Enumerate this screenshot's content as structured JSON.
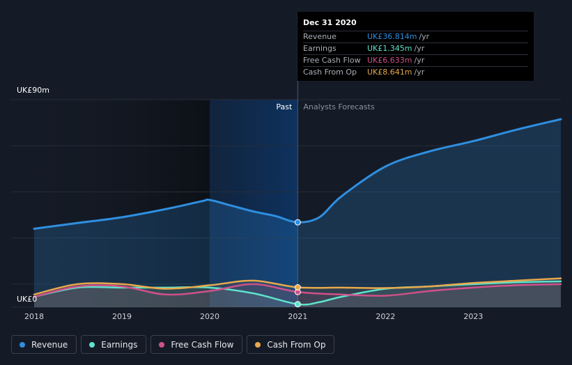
{
  "chart_data": {
    "type": "area",
    "x_ticks": [
      "2018",
      "2019",
      "2020",
      "2021",
      "2022",
      "2023"
    ],
    "y_top_label": "UK£90m",
    "y_bottom_label": "UK£0",
    "ylim": [
      0,
      90
    ],
    "divider_label_past": "Past",
    "divider_label_forecast": "Analysts Forecasts",
    "divider_date": "2021-01-01",
    "series": [
      {
        "name": "Revenue",
        "color": "#2f8fe0",
        "x": [
          "2018-01-01",
          "2018-07-01",
          "2019-01-01",
          "2019-07-01",
          "2019-12-01",
          "2020-01-01",
          "2020-04-01",
          "2020-07-01",
          "2020-10-01",
          "2021-01-01",
          "2021-04-01",
          "2021-07-01",
          "2022-01-01",
          "2022-07-01",
          "2023-01-01",
          "2023-07-01",
          "2023-12-31"
        ],
        "values": [
          34.0,
          36.5,
          39.0,
          42.5,
          46.0,
          46.5,
          44.0,
          41.5,
          39.5,
          36.8,
          39.0,
          48.0,
          61.0,
          67.5,
          72.0,
          77.0,
          81.5
        ]
      },
      {
        "name": "Earnings",
        "color": "#5fe3cc",
        "x": [
          "2018-01-01",
          "2018-07-01",
          "2019-01-01",
          "2019-07-01",
          "2020-01-01",
          "2020-07-01",
          "2021-01-01",
          "2021-04-01",
          "2021-07-01",
          "2022-01-01",
          "2022-07-01",
          "2023-01-01",
          "2023-07-01",
          "2023-12-31"
        ],
        "values": [
          4.5,
          8.5,
          8.5,
          8.5,
          8.5,
          6.0,
          1.3,
          2.2,
          4.5,
          8.0,
          9.0,
          10.0,
          10.8,
          11.2
        ]
      },
      {
        "name": "Free Cash Flow",
        "color": "#d0508a",
        "x": [
          "2018-01-01",
          "2018-07-01",
          "2019-01-01",
          "2019-07-01",
          "2020-01-01",
          "2020-07-01",
          "2021-01-01",
          "2021-07-01",
          "2022-01-01",
          "2022-07-01",
          "2023-01-01",
          "2023-07-01",
          "2023-12-31"
        ],
        "values": [
          4.5,
          9.0,
          9.0,
          5.5,
          7.0,
          10.0,
          6.6,
          5.5,
          5.0,
          7.0,
          8.5,
          9.5,
          10.0
        ]
      },
      {
        "name": "Cash From Op",
        "color": "#e8a94c",
        "x": [
          "2018-01-01",
          "2018-07-01",
          "2019-01-01",
          "2019-07-01",
          "2020-01-01",
          "2020-07-01",
          "2021-01-01",
          "2021-07-01",
          "2022-01-01",
          "2022-07-01",
          "2023-01-01",
          "2023-07-01",
          "2023-12-31"
        ],
        "values": [
          5.5,
          10.0,
          10.0,
          8.0,
          9.5,
          11.5,
          8.6,
          8.5,
          8.3,
          9.0,
          10.5,
          11.5,
          12.5
        ]
      }
    ],
    "legend_position": "bottom-left"
  },
  "tooltip": {
    "date": "Dec 31 2020",
    "rows": [
      {
        "label": "Revenue",
        "value": "UK£36.814m",
        "unit": "/yr",
        "color": "#2f8fe0"
      },
      {
        "label": "Earnings",
        "value": "UK£1.345m",
        "unit": "/yr",
        "color": "#5fe3cc"
      },
      {
        "label": "Free Cash Flow",
        "value": "UK£6.633m",
        "unit": "/yr",
        "color": "#d0508a"
      },
      {
        "label": "Cash From Op",
        "value": "UK£8.641m",
        "unit": "/yr",
        "color": "#e8a94c"
      }
    ]
  },
  "legend": [
    {
      "label": "Revenue",
      "color": "#2f8fe0"
    },
    {
      "label": "Earnings",
      "color": "#5fe3cc"
    },
    {
      "label": "Free Cash Flow",
      "color": "#d0508a"
    },
    {
      "label": "Cash From Op",
      "color": "#e8a94c"
    }
  ]
}
